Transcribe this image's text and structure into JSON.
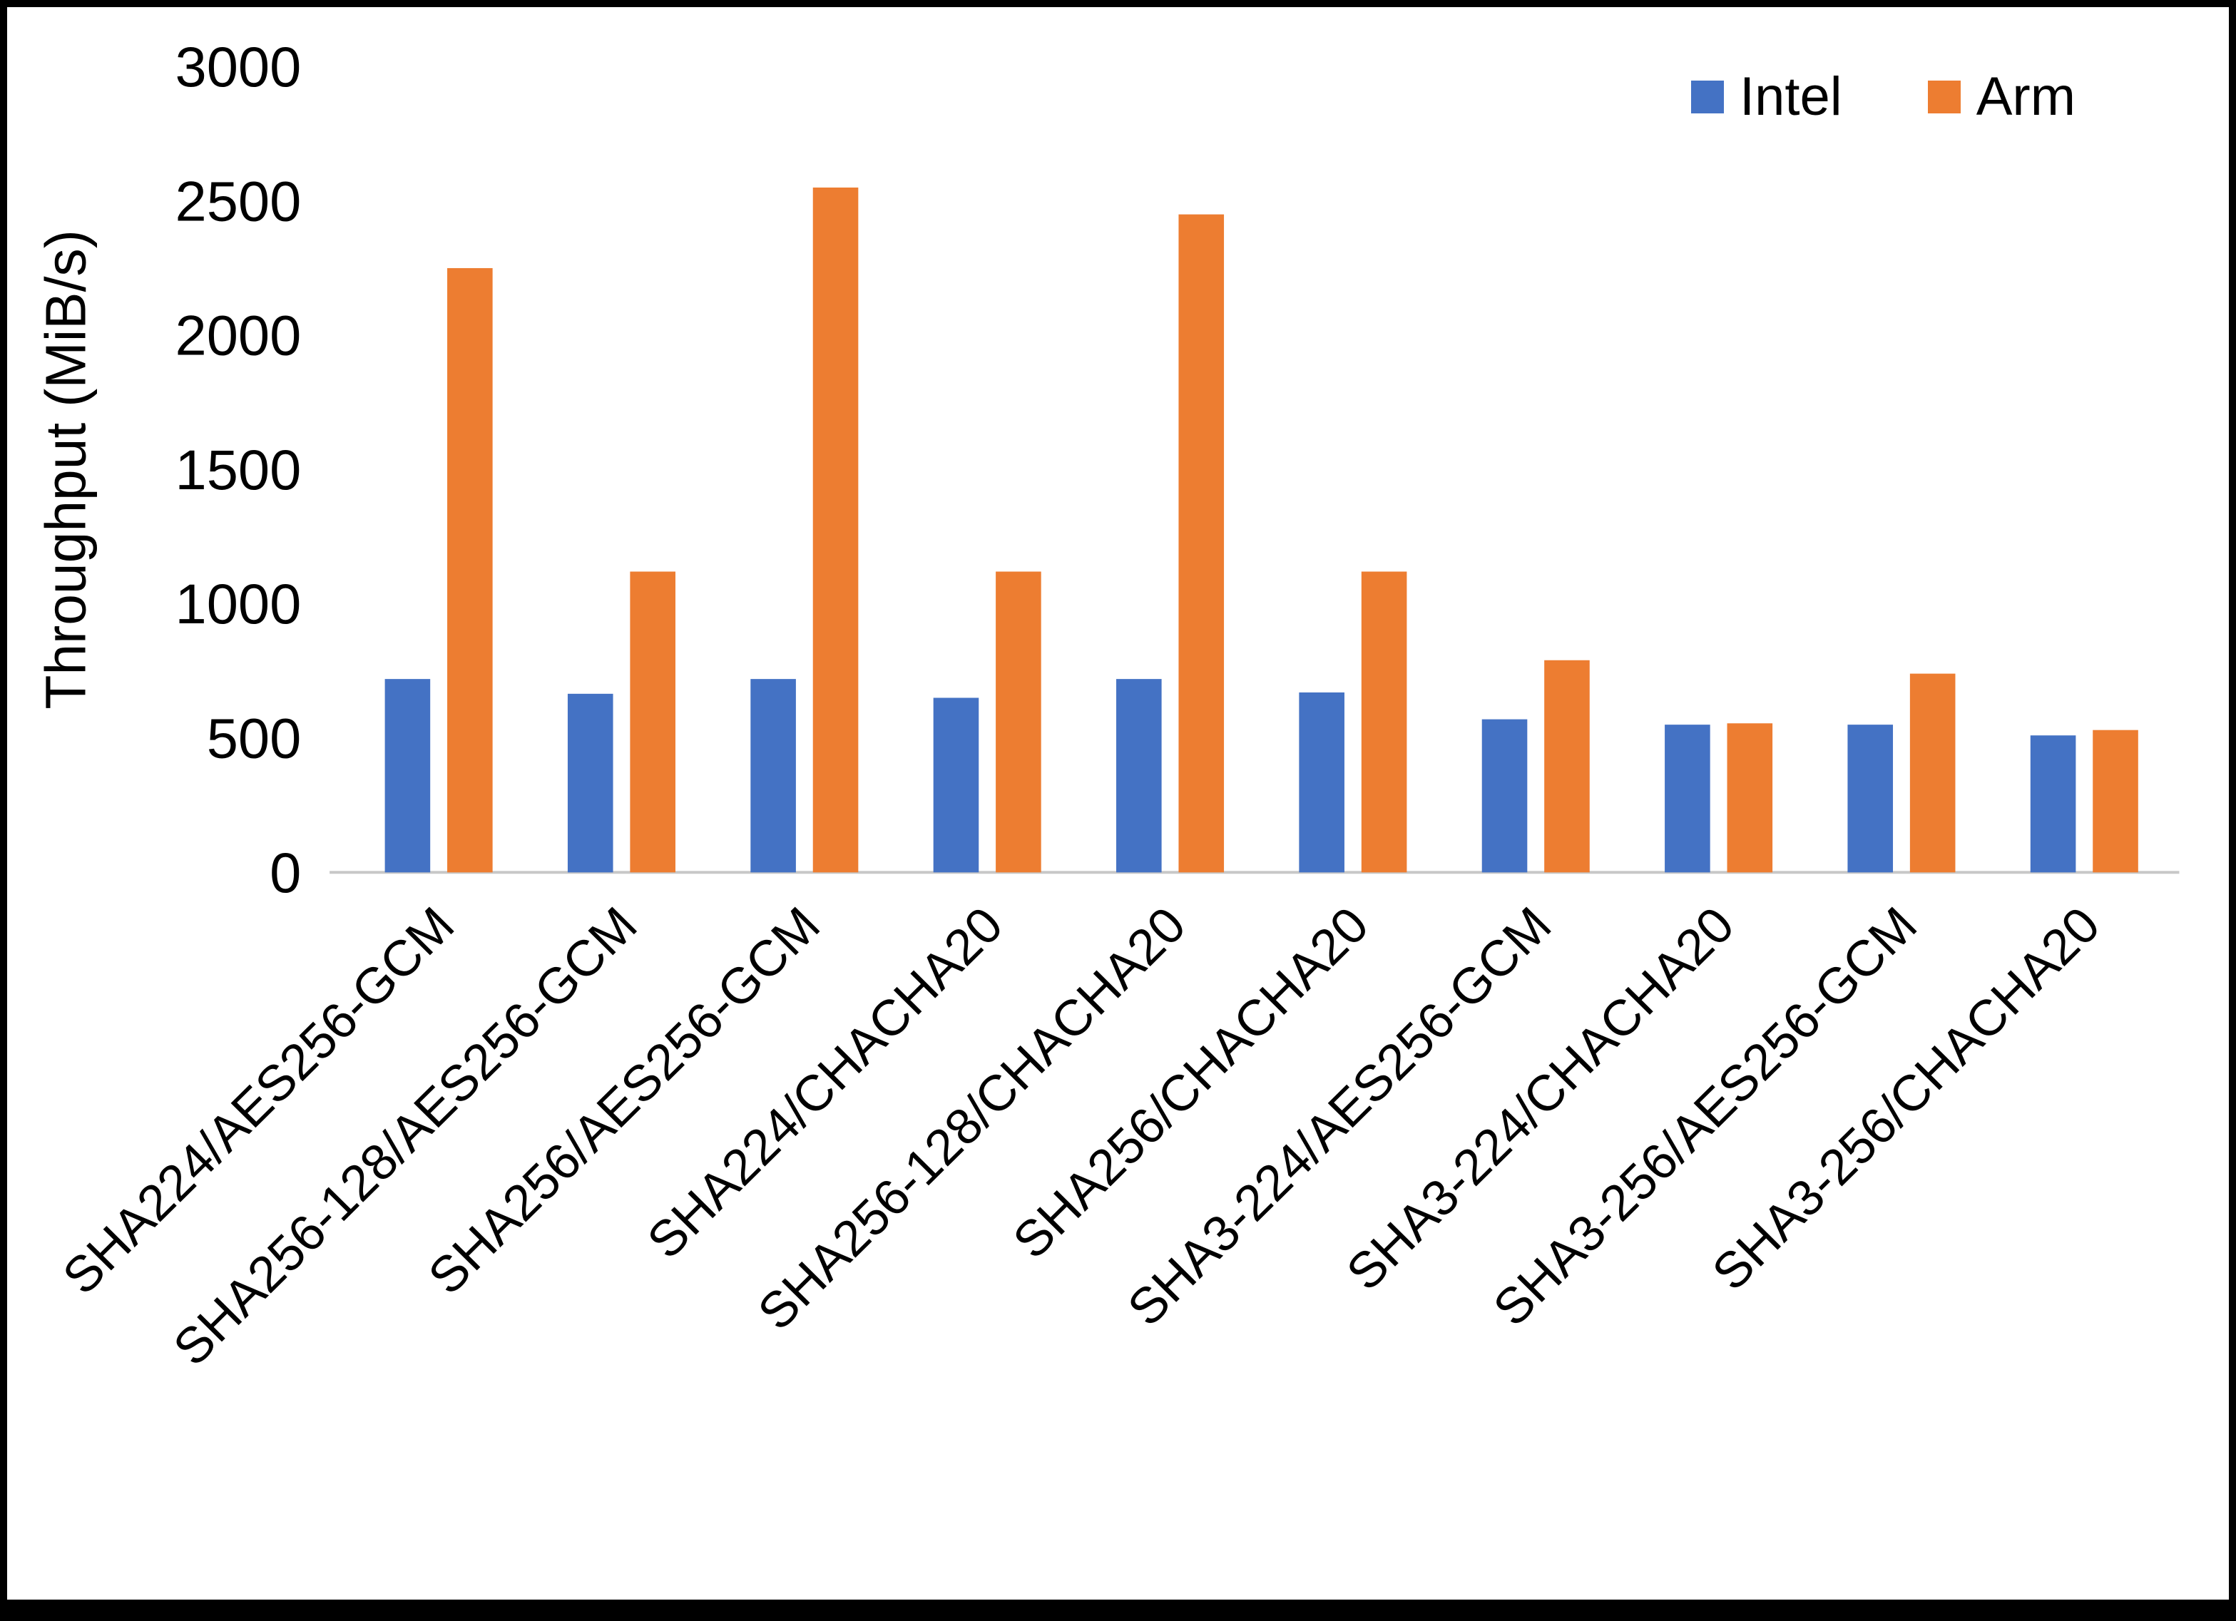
{
  "chart_data": {
    "type": "bar",
    "title": "",
    "xlabel": "",
    "ylabel": "Throughput (MiB/s)",
    "ylim": [
      0,
      3000
    ],
    "yticks": [
      0,
      500,
      1000,
      1500,
      2000,
      2500,
      3000
    ],
    "grid": false,
    "legend_position": "top-right",
    "axis_line_color": "#c8c8c8",
    "text_color": "#000000",
    "categories": [
      "SHA224/AES256-GCM",
      "SHA256-128/AES256-GCM",
      "SHA256/AES256-GCM",
      "SHA224/CHACHA20",
      "SHA256-128/CHACHA20",
      "SHA256/CHACHA20",
      "SHA3-224/AES256-GCM",
      "SHA3-224/CHACHA20",
      "SHA3-256/AES256-GCM",
      "SHA3-256/CHACHA20"
    ],
    "series": [
      {
        "name": "Intel",
        "color": "#4472C4",
        "values": [
          720,
          665,
          720,
          650,
          720,
          670,
          570,
          550,
          550,
          510
        ]
      },
      {
        "name": "Arm",
        "color": "#ED7D31",
        "values": [
          2250,
          1120,
          2550,
          1120,
          2450,
          1120,
          790,
          555,
          740,
          530
        ]
      }
    ]
  }
}
